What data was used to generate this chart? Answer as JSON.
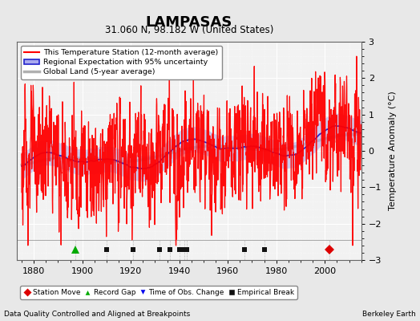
{
  "title": "LAMPASAS",
  "subtitle": "31.060 N, 98.182 W (United States)",
  "ylabel": "Temperature Anomaly (°C)",
  "xlabel_bottom": "Data Quality Controlled and Aligned at Breakpoints",
  "xlabel_bottom_right": "Berkeley Earth",
  "ylim": [
    -3,
    3
  ],
  "xlim": [
    1873,
    2015
  ],
  "yticks": [
    -3,
    -2,
    -1,
    0,
    1,
    2,
    3
  ],
  "xticks": [
    1880,
    1900,
    1920,
    1940,
    1960,
    1980,
    2000
  ],
  "bg_color": "#e8e8e8",
  "plot_bg_color": "#f2f2f2",
  "grid_color": "#ffffff",
  "station_line_color": "#ff0000",
  "regional_band_color": "#aaaaee",
  "regional_line_color": "#2222cc",
  "global_line_color": "#b0b0b0",
  "legend_labels": [
    "This Temperature Station (12-month average)",
    "Regional Expectation with 95% uncertainty",
    "Global Land (5-year average)"
  ],
  "marker_labels": [
    "Station Move",
    "Record Gap",
    "Time of Obs. Change",
    "Empirical Break"
  ],
  "marker_colors": [
    "#dd0000",
    "#00aa00",
    "#0000ee",
    "#111111"
  ],
  "marker_shapes": [
    "D",
    "^",
    "v",
    "s"
  ],
  "station_moves": [
    2002
  ],
  "record_gaps": [
    1897
  ],
  "obs_changes": [],
  "empirical_breaks": [
    1910,
    1921,
    1932,
    1936,
    1940,
    1942,
    1943,
    1967,
    1975
  ],
  "seed": 123,
  "n_years_start": 1875,
  "n_years_end": 2014
}
